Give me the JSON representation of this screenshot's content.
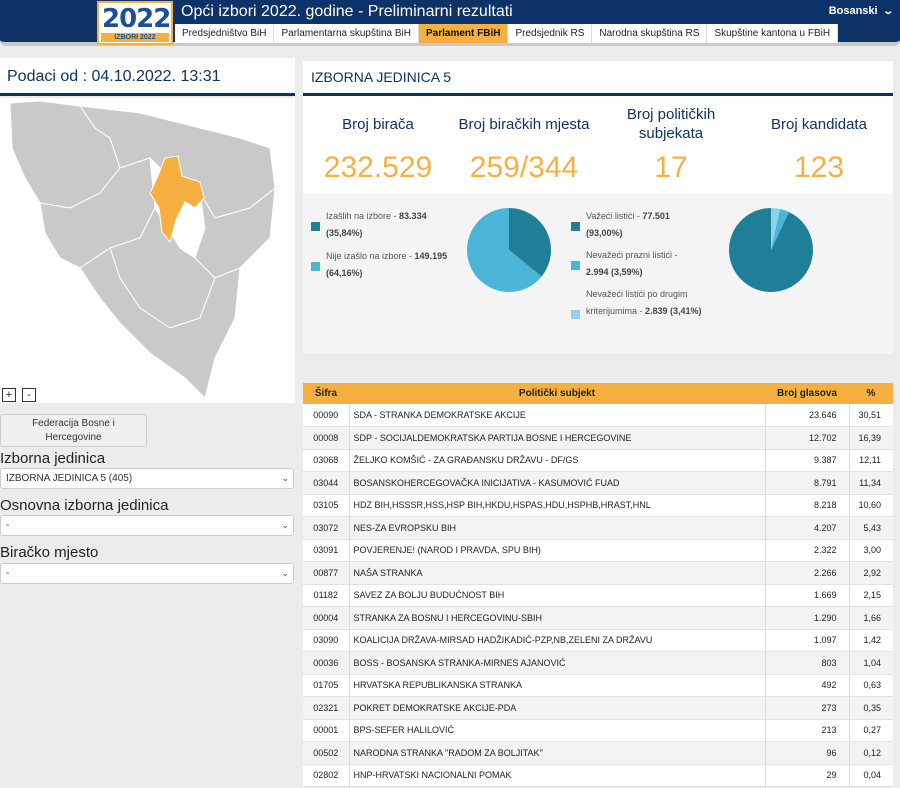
{
  "header": {
    "logo_text": "2022",
    "logo_sub": "IZBORI 2022",
    "title": "Opći izbori 2022. godine - Preliminarni rezultati",
    "language": "Bosanski",
    "tabs": [
      {
        "label": "Predsjedništvo BiH",
        "active": false
      },
      {
        "label": "Parlamentarna skupština BiH",
        "active": false
      },
      {
        "label": "Parlament FBiH",
        "active": true
      },
      {
        "label": "Predsjednik RS",
        "active": false
      },
      {
        "label": "Narodna skupština RS",
        "active": false
      },
      {
        "label": "Skupštine kantona u FBiH",
        "active": false
      }
    ]
  },
  "sidebar": {
    "date_label": "Podaci od : 04.10.2022. 13:31",
    "zoom_in": "+",
    "zoom_out": "-",
    "entity_button": "Federacija Bosne i Hercegovine",
    "izborna_jedinica": {
      "label": "Izborna jedinica",
      "value": "IZBORNA JEDINICA 5 (405)"
    },
    "osnovna_jedinica": {
      "label": "Osnovna izborna jedinica",
      "value": "-"
    },
    "biracko_mjesto": {
      "label": "Biračko mjesto",
      "value": "-"
    },
    "map_colors": {
      "base": "#c9c9c9",
      "highlight": "#f5b041",
      "border": "#ffffff"
    }
  },
  "unit": {
    "title": "IZBORNA JEDINICA 5",
    "stats": [
      {
        "label": "Broj birača",
        "value": "232.529"
      },
      {
        "label": "Broj biračkih mjesta",
        "value": "259/344"
      },
      {
        "label": "Broj političkih subjekata",
        "value": "17"
      },
      {
        "label": "Broj kandidata",
        "value": "123"
      }
    ],
    "turnout": {
      "came_label": "Izašlih na izbore - ",
      "came_value": "83.334 (35,84%)",
      "came_pct": 35.84,
      "notcame_label": "Nije izašlo na izbore - ",
      "notcame_value": "149.195 (64,16%)",
      "notcame_pct": 64.16
    },
    "ballots": {
      "valid_label": "Važeći listići - ",
      "valid_value": "77.501 (93,00%)",
      "valid_pct": 93.0,
      "empty_label": "Nevažeći prazni listići - ",
      "empty_value": "2.994 (3,59%)",
      "empty_pct": 3.59,
      "other_label_1": "Nevažeći listići po drugim",
      "other_label_2": "kriterijumima - ",
      "other_value": "2.839 (3,41%)",
      "other_pct": 3.41
    },
    "colors": {
      "dark": "#1f7f99",
      "light": "#4ab5d6",
      "lighter": "#8fd3ea",
      "accent": "#f5b041",
      "navy": "#0d3268"
    }
  },
  "results": {
    "headers": {
      "code": "Šifra",
      "party": "Politički subjekt",
      "votes": "Broj glasova",
      "pct": "%"
    },
    "rows": [
      {
        "code": "00090",
        "party": "SDA - STRANKA DEMOKRATSKE AKCIJE",
        "votes": "23.646",
        "pct": "30,51"
      },
      {
        "code": "00008",
        "party": "SDP - SOCIJALDEMOKRATSKA PARTIJA BOSNE I HERCEGOVINE",
        "votes": "12.702",
        "pct": "16,39"
      },
      {
        "code": "03068",
        "party": "ŽELJKO KOMŠIĆ - ZA GRAĐANSKU DRŽAVU - DF/GS",
        "votes": "9.387",
        "pct": "12,11"
      },
      {
        "code": "03044",
        "party": "BOSANSKOHERCEGOVAČKA INICIJATIVA - KASUMOVIĆ FUAD",
        "votes": "8.791",
        "pct": "11,34"
      },
      {
        "code": "03105",
        "party": "HDZ BIH,HSSSR,HSS,HSP BIH,HKDU,HSPAS,HDU,HSPHB,HRAST,HNL",
        "votes": "8.218",
        "pct": "10,60"
      },
      {
        "code": "03072",
        "party": "NES-ZA EVROPSKU BIH",
        "votes": "4.207",
        "pct": "5,43"
      },
      {
        "code": "03091",
        "party": "POVJERENJE! (NAROD I PRAVDA, SPU BIH)",
        "votes": "2.322",
        "pct": "3,00"
      },
      {
        "code": "00877",
        "party": "NAŠA STRANKA",
        "votes": "2.266",
        "pct": "2,92"
      },
      {
        "code": "01182",
        "party": "SAVEZ ZA BOLJU BUDUĆNOST BIH",
        "votes": "1.669",
        "pct": "2,15"
      },
      {
        "code": "00004",
        "party": "STRANKA ZA BOSNU I HERCEGOVINU-SBIH",
        "votes": "1.290",
        "pct": "1,66"
      },
      {
        "code": "03090",
        "party": "KOALICIJA DRŽAVA-MIRSAD HADŽIKADIĆ-PZP,NB,ZELENI ZA DRŽAVU",
        "votes": "1.097",
        "pct": "1,42"
      },
      {
        "code": "00036",
        "party": "BOSS - BOSANSKA STRANKA-MIRNES AJANOVIĆ",
        "votes": "803",
        "pct": "1,04"
      },
      {
        "code": "01705",
        "party": "HRVATSKA REPUBLIKANSKA STRANKA",
        "votes": "492",
        "pct": "0,63"
      },
      {
        "code": "02321",
        "party": "POKRET DEMOKRATSKE AKCIJE-PDA",
        "votes": "273",
        "pct": "0,35"
      },
      {
        "code": "00001",
        "party": "BPS-SEFER HALILOVIĆ",
        "votes": "213",
        "pct": "0,27"
      },
      {
        "code": "00502",
        "party": "NARODNA STRANKA \"RADOM ZA BOLJITAK\"",
        "votes": "96",
        "pct": "0,12"
      },
      {
        "code": "02802",
        "party": "HNP-HRVATSKI NACIONALNI POMAK",
        "votes": "29",
        "pct": "0,04"
      }
    ]
  }
}
